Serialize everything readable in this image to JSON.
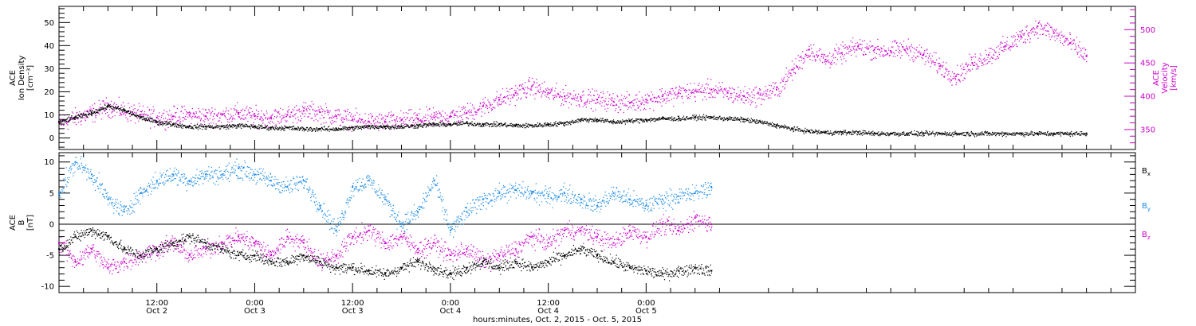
{
  "chart_data": [
    {
      "type": "scatter",
      "panel": "top",
      "ylabel": [
        "ACE",
        "Ion Density",
        "[cm⁻³]"
      ],
      "ylabel_right": [
        "ACE",
        "Velocity",
        "[km/s]"
      ],
      "ylim": [
        -5,
        57
      ],
      "yticks": [
        "0",
        "10",
        "20",
        "30",
        "40",
        "50"
      ],
      "ylim_right": [
        320,
        535
      ],
      "yticks_right": [
        "350",
        "400",
        "450",
        "500"
      ],
      "series": [
        {
          "axis": "left",
          "color": "#000000",
          "points": [
            [
              0,
              7
            ],
            [
              2,
              9
            ],
            [
              4,
              11
            ],
            [
              6,
              14
            ],
            [
              8,
              12
            ],
            [
              10,
              9
            ],
            [
              12,
              7
            ],
            [
              14,
              6
            ],
            [
              16,
              5
            ],
            [
              18,
              5
            ],
            [
              20,
              5
            ],
            [
              22,
              5.5
            ],
            [
              24,
              5
            ],
            [
              26,
              4.5
            ],
            [
              28,
              4.5
            ],
            [
              30,
              4
            ],
            [
              32,
              4
            ],
            [
              34,
              4
            ],
            [
              36,
              4.5
            ],
            [
              38,
              5
            ],
            [
              40,
              5
            ],
            [
              42,
              5
            ],
            [
              44,
              5.5
            ],
            [
              46,
              6
            ],
            [
              48,
              6
            ],
            [
              50,
              6.5
            ],
            [
              52,
              6
            ],
            [
              54,
              6
            ],
            [
              56,
              5.5
            ],
            [
              58,
              5.5
            ],
            [
              60,
              6
            ],
            [
              62,
              6.5
            ],
            [
              64,
              8
            ],
            [
              66,
              8
            ],
            [
              68,
              7
            ],
            [
              70,
              7.5
            ],
            [
              72,
              8
            ],
            [
              74,
              8.5
            ],
            [
              76,
              8.5
            ],
            [
              78,
              9
            ],
            [
              80,
              9
            ],
            [
              82,
              8.5
            ],
            [
              84,
              8
            ],
            [
              86,
              7
            ],
            [
              88,
              5.5
            ],
            [
              90,
              4
            ],
            [
              92,
              3
            ],
            [
              94,
              2.5
            ],
            [
              96,
              2.5
            ],
            [
              98,
              2.5
            ],
            [
              100,
              2
            ],
            [
              102,
              2
            ],
            [
              104,
              2
            ],
            [
              106,
              2
            ],
            [
              108,
              2
            ],
            [
              110,
              2
            ],
            [
              112,
              2
            ],
            [
              114,
              2
            ],
            [
              116,
              2
            ],
            [
              118,
              2
            ],
            [
              120,
              2
            ],
            [
              122,
              2
            ],
            [
              124,
              2
            ],
            [
              126,
              2
            ]
          ]
        },
        {
          "axis": "right",
          "color": "#cc00cc",
          "points": [
            [
              0,
              360
            ],
            [
              2,
              368
            ],
            [
              4,
              375
            ],
            [
              6,
              385
            ],
            [
              8,
              378
            ],
            [
              10,
              372
            ],
            [
              12,
              368
            ],
            [
              14,
              370
            ],
            [
              16,
              372
            ],
            [
              18,
              370
            ],
            [
              20,
              372
            ],
            [
              22,
              375
            ],
            [
              24,
              370
            ],
            [
              26,
              368
            ],
            [
              28,
              372
            ],
            [
              30,
              378
            ],
            [
              32,
              376
            ],
            [
              34,
              370
            ],
            [
              36,
              365
            ],
            [
              38,
              362
            ],
            [
              40,
              362
            ],
            [
              42,
              364
            ],
            [
              44,
              366
            ],
            [
              46,
              368
            ],
            [
              48,
              370
            ],
            [
              50,
              375
            ],
            [
              52,
              385
            ],
            [
              54,
              395
            ],
            [
              56,
              405
            ],
            [
              58,
              415
            ],
            [
              60,
              405
            ],
            [
              62,
              400
            ],
            [
              64,
              398
            ],
            [
              66,
              395
            ],
            [
              68,
              392
            ],
            [
              70,
              390
            ],
            [
              72,
              395
            ],
            [
              74,
              400
            ],
            [
              76,
              405
            ],
            [
              78,
              408
            ],
            [
              80,
              410
            ],
            [
              82,
              405
            ],
            [
              84,
              400
            ],
            [
              86,
              402
            ],
            [
              88,
              410
            ],
            [
              90,
              440
            ],
            [
              92,
              470
            ],
            [
              94,
              455
            ],
            [
              96,
              465
            ],
            [
              98,
              475
            ],
            [
              100,
              470
            ],
            [
              102,
              468
            ],
            [
              104,
              472
            ],
            [
              106,
              462
            ],
            [
              108,
              445
            ],
            [
              110,
              430
            ],
            [
              112,
              450
            ],
            [
              114,
              462
            ],
            [
              116,
              475
            ],
            [
              118,
              490
            ],
            [
              120,
              505
            ],
            [
              122,
              495
            ],
            [
              124,
              480
            ],
            [
              126,
              460
            ]
          ]
        }
      ]
    },
    {
      "type": "scatter",
      "panel": "bottom",
      "ylabel": [
        "ACE",
        "B",
        "[nT]"
      ],
      "ylim": [
        -11,
        11.5
      ],
      "yticks": [
        "-10",
        "-5",
        "0",
        "5",
        "10"
      ],
      "legend_position": "right",
      "xlim_hours": [
        0,
        132
      ],
      "xticks": [
        {
          "h": 12,
          "time": "12:00",
          "date": "Oct 2"
        },
        {
          "h": 24,
          "time": "0:00",
          "date": "Oct 3"
        },
        {
          "h": 36,
          "time": "12:00",
          "date": "Oct 3"
        },
        {
          "h": 48,
          "time": "0:00",
          "date": "Oct 4"
        },
        {
          "h": 60,
          "time": "12:00",
          "date": "Oct 4"
        },
        {
          "h": 72,
          "time": "0:00",
          "date": "Oct 5"
        }
      ],
      "xlabel": "hours:minutes, Oct.  2, 2015 - Oct.  5, 2015",
      "series": [
        {
          "name": "B",
          "sub": "x",
          "color": "#000000",
          "points": [
            [
              0,
              -4
            ],
            [
              2,
              -2
            ],
            [
              4,
              -1
            ],
            [
              6,
              -2
            ],
            [
              8,
              -4
            ],
            [
              10,
              -5
            ],
            [
              12,
              -4
            ],
            [
              14,
              -3
            ],
            [
              16,
              -2
            ],
            [
              18,
              -3
            ],
            [
              20,
              -4
            ],
            [
              22,
              -5
            ],
            [
              24,
              -5
            ],
            [
              26,
              -6
            ],
            [
              28,
              -6
            ],
            [
              30,
              -5
            ],
            [
              32,
              -6
            ],
            [
              34,
              -7
            ],
            [
              36,
              -7
            ],
            [
              38,
              -7.5
            ],
            [
              40,
              -8
            ],
            [
              42,
              -7
            ],
            [
              44,
              -6
            ],
            [
              46,
              -7
            ],
            [
              48,
              -8
            ],
            [
              50,
              -7
            ],
            [
              52,
              -6
            ],
            [
              54,
              -7
            ],
            [
              56,
              -6
            ],
            [
              58,
              -7
            ],
            [
              60,
              -6
            ],
            [
              62,
              -5
            ],
            [
              64,
              -4
            ],
            [
              66,
              -5
            ],
            [
              68,
              -6
            ],
            [
              70,
              -7
            ],
            [
              72,
              -7.5
            ],
            [
              74,
              -8
            ],
            [
              76,
              -7.5
            ],
            [
              78,
              -7
            ],
            [
              80,
              -7.5
            ]
          ]
        },
        {
          "name": "B",
          "sub": "y",
          "color": "#1a8ae6",
          "points": [
            [
              0,
              5
            ],
            [
              2,
              10
            ],
            [
              4,
              8
            ],
            [
              6,
              4
            ],
            [
              8,
              2
            ],
            [
              10,
              5
            ],
            [
              12,
              7
            ],
            [
              14,
              8
            ],
            [
              16,
              7
            ],
            [
              18,
              8
            ],
            [
              20,
              8
            ],
            [
              22,
              9
            ],
            [
              24,
              8
            ],
            [
              26,
              7
            ],
            [
              28,
              6
            ],
            [
              30,
              7
            ],
            [
              32,
              3
            ],
            [
              34,
              -1
            ],
            [
              36,
              6
            ],
            [
              38,
              7
            ],
            [
              40,
              4
            ],
            [
              42,
              0
            ],
            [
              44,
              2
            ],
            [
              46,
              7
            ],
            [
              48,
              -1
            ],
            [
              50,
              2
            ],
            [
              52,
              4
            ],
            [
              54,
              5
            ],
            [
              56,
              5.5
            ],
            [
              58,
              5
            ],
            [
              60,
              4.5
            ],
            [
              62,
              5
            ],
            [
              64,
              4
            ],
            [
              66,
              3
            ],
            [
              68,
              5
            ],
            [
              70,
              4
            ],
            [
              72,
              3
            ],
            [
              74,
              4
            ],
            [
              76,
              4.5
            ],
            [
              78,
              5
            ],
            [
              80,
              6
            ]
          ]
        },
        {
          "name": "B",
          "sub": "z",
          "color": "#cc00cc",
          "points": [
            [
              0,
              -3
            ],
            [
              2,
              -6
            ],
            [
              4,
              -4
            ],
            [
              6,
              -7
            ],
            [
              8,
              -6
            ],
            [
              10,
              -5
            ],
            [
              12,
              -4
            ],
            [
              14,
              -3
            ],
            [
              16,
              -5
            ],
            [
              18,
              -4
            ],
            [
              20,
              -3
            ],
            [
              22,
              -2
            ],
            [
              24,
              -3
            ],
            [
              26,
              -5
            ],
            [
              28,
              -2
            ],
            [
              30,
              -3
            ],
            [
              32,
              -6
            ],
            [
              34,
              -5
            ],
            [
              36,
              -2
            ],
            [
              38,
              -1
            ],
            [
              40,
              -3
            ],
            [
              42,
              -2
            ],
            [
              44,
              -4
            ],
            [
              46,
              -3
            ],
            [
              48,
              -5
            ],
            [
              50,
              -4
            ],
            [
              52,
              -6
            ],
            [
              54,
              -5
            ],
            [
              56,
              -4
            ],
            [
              58,
              -2
            ],
            [
              60,
              -3
            ],
            [
              62,
              -1
            ],
            [
              64,
              -1
            ],
            [
              66,
              -2
            ],
            [
              68,
              -3
            ],
            [
              70,
              -1
            ],
            [
              72,
              -2
            ],
            [
              74,
              0
            ],
            [
              76,
              -1
            ],
            [
              78,
              1
            ],
            [
              80,
              0
            ]
          ]
        }
      ]
    }
  ]
}
